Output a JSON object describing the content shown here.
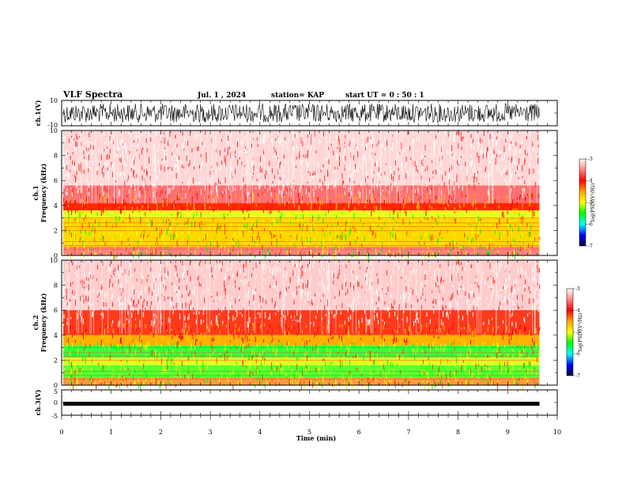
{
  "header": {
    "title": "VLF Spectra",
    "date": "Jul. 1 , 2024",
    "station": "station= KAP",
    "start_ut": "start UT = 0 : 50 : 1"
  },
  "chart_data": [
    {
      "type": "line",
      "panel": "ch1-waveform",
      "ylabel": "ch.1(V)",
      "ylim": [
        -10,
        10
      ],
      "yticks": [
        "10",
        "-10"
      ],
      "xlim": [
        0,
        10
      ],
      "color": "#000000"
    },
    {
      "type": "heatmap",
      "panel": "ch1-spectrogram",
      "ylabel_line1": "ch.1",
      "ylabel_line2": "Frequency (kHz)",
      "ylim": [
        0,
        10
      ],
      "yticks": [
        "0",
        "2",
        "4",
        "6",
        "8",
        "10"
      ],
      "xlim": [
        0,
        10
      ],
      "data_extent_min": 9.8,
      "colorbar": {
        "label": "log(PSD)(V²/Hz)",
        "ticks": [
          "-3",
          "-4",
          "-5",
          "-6",
          "-7"
        ],
        "range": [
          -7,
          -3
        ]
      }
    },
    {
      "type": "heatmap",
      "panel": "ch2-spectrogram",
      "ylabel_line1": "ch.2",
      "ylabel_line2": "Frequency (kHz)",
      "ylim": [
        0,
        10
      ],
      "yticks": [
        "0",
        "2",
        "4",
        "6",
        "8",
        "10"
      ],
      "xlim": [
        0,
        10
      ],
      "data_extent_min": 9.8,
      "colorbar": {
        "label": "log(PSD)(V²/Hz)",
        "ticks": [
          "-3",
          "-4",
          "-5",
          "-6",
          "-7"
        ],
        "range": [
          -7,
          -3
        ]
      }
    },
    {
      "type": "line",
      "panel": "ch3-waveform",
      "ylabel": "ch.3(V)",
      "ylim": [
        -5,
        5
      ],
      "yticks": [
        "5",
        "0",
        "-5"
      ],
      "xlim": [
        0,
        10
      ],
      "xlabel": "Time (min)",
      "xticks": [
        "0",
        "1",
        "2",
        "3",
        "4",
        "5",
        "6",
        "7",
        "8",
        "9",
        "10"
      ],
      "color": "#000000"
    }
  ]
}
